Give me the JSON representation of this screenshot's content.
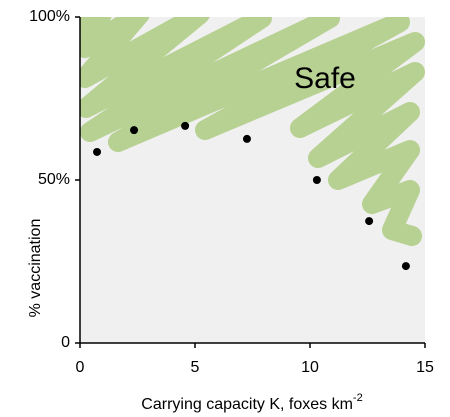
{
  "chart_data": {
    "type": "scatter",
    "annotation": "Safe",
    "xlabel": {
      "text": "Carrying capacity K, foxes km",
      "superscript": "-2"
    },
    "ylabel": "% vaccination",
    "x": [
      0.74,
      2.35,
      4.57,
      7.26,
      10.3,
      12.57,
      14.17
    ],
    "values": [
      58.6,
      65.3,
      66.6,
      62.6,
      50,
      37.4,
      23.6
    ],
    "color": "#000000",
    "xlim": [
      0,
      15
    ],
    "xticks": [
      0,
      5,
      10,
      15
    ],
    "ylim": [
      0,
      100
    ],
    "yticks": [
      0,
      {
        "value": 50,
        "label": "50%"
      },
      {
        "value": 100,
        "label": "100%"
      }
    ]
  }
}
